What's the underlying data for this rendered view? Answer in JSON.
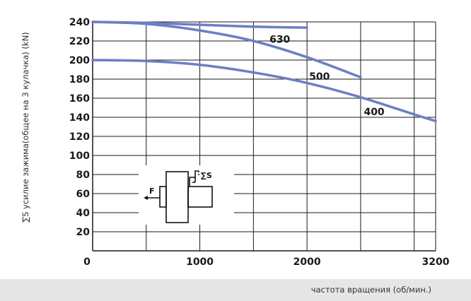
{
  "chart_data": {
    "type": "line",
    "title": "",
    "xlabel": "частота вращения (об/мин.)",
    "ylabel": "∑S усилие зажима(общее на 3 кулачка) (kN)",
    "xlim": [
      0,
      3200
    ],
    "ylim": [
      0,
      240
    ],
    "x_ticks": [
      "0",
      "1000",
      "2000",
      "3200"
    ],
    "y_ticks": [
      "20",
      "40",
      "60",
      "80",
      "100",
      "120",
      "140",
      "160",
      "180",
      "200",
      "220",
      "240"
    ],
    "grid": true,
    "curve_color": "#6b7fc4",
    "series": [
      {
        "name": "630",
        "x": [
          0,
          500,
          1000,
          1500,
          2000
        ],
        "y": [
          240,
          239,
          237,
          235,
          234
        ]
      },
      {
        "name": "500",
        "x": [
          0,
          500,
          1000,
          1500,
          2000,
          2500
        ],
        "y": [
          240,
          238,
          231,
          220,
          203,
          182
        ]
      },
      {
        "name": "400",
        "x": [
          0,
          500,
          1000,
          1500,
          2000,
          2500,
          3000,
          3200
        ],
        "y": [
          200,
          199,
          195,
          187,
          176,
          161,
          143,
          136
        ]
      }
    ]
  },
  "inset": {
    "force_label": "F",
    "sum_label": "∑S"
  }
}
